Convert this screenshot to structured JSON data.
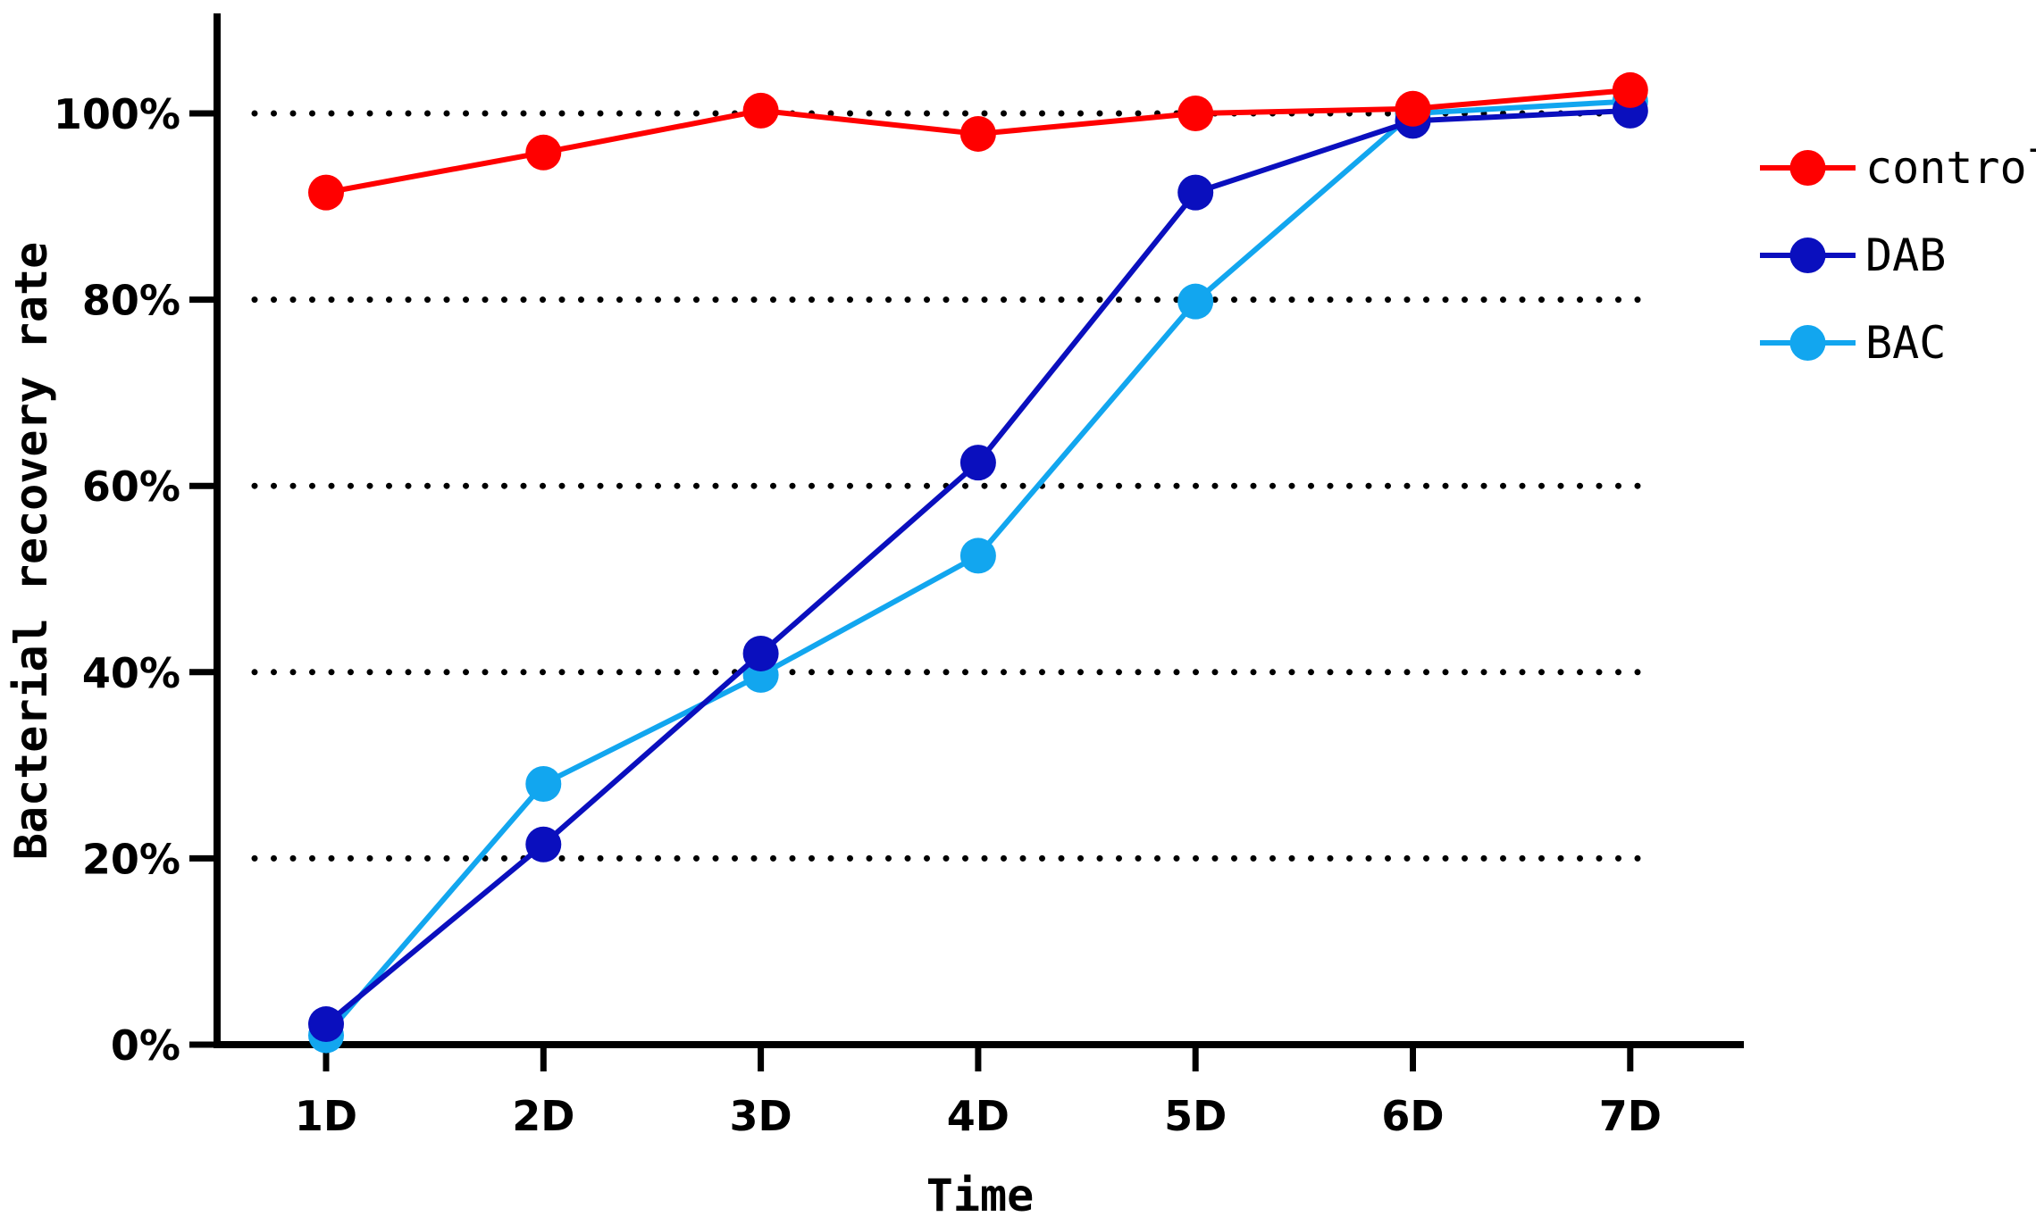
{
  "chart_data": {
    "type": "line",
    "title": "",
    "xlabel": "Time",
    "ylabel": "Bacterial recovery rate",
    "categories": [
      "1D",
      "2D",
      "3D",
      "4D",
      "5D",
      "6D",
      "7D"
    ],
    "ylim": [
      0,
      110
    ],
    "yticks": [
      0,
      20,
      40,
      60,
      80,
      100
    ],
    "ytick_labels": [
      "0%",
      "20%",
      "40%",
      "60%",
      "80%",
      "100%"
    ],
    "grid": "horizontal dotted",
    "legend_position": "right",
    "series": [
      {
        "name": "control",
        "color": "#ff0000",
        "values": [
          91.5,
          95.8,
          100.3,
          97.8,
          100,
          100.5,
          102.5
        ]
      },
      {
        "name": "DAB",
        "color": "#0a0fbe",
        "values": [
          2.2,
          21.5,
          42,
          62.5,
          91.5,
          99.2,
          100.3
        ]
      },
      {
        "name": "BAC",
        "color": "#12a6ef",
        "values": [
          1,
          28,
          39.7,
          52.5,
          79.8,
          100,
          101.3
        ]
      }
    ]
  }
}
